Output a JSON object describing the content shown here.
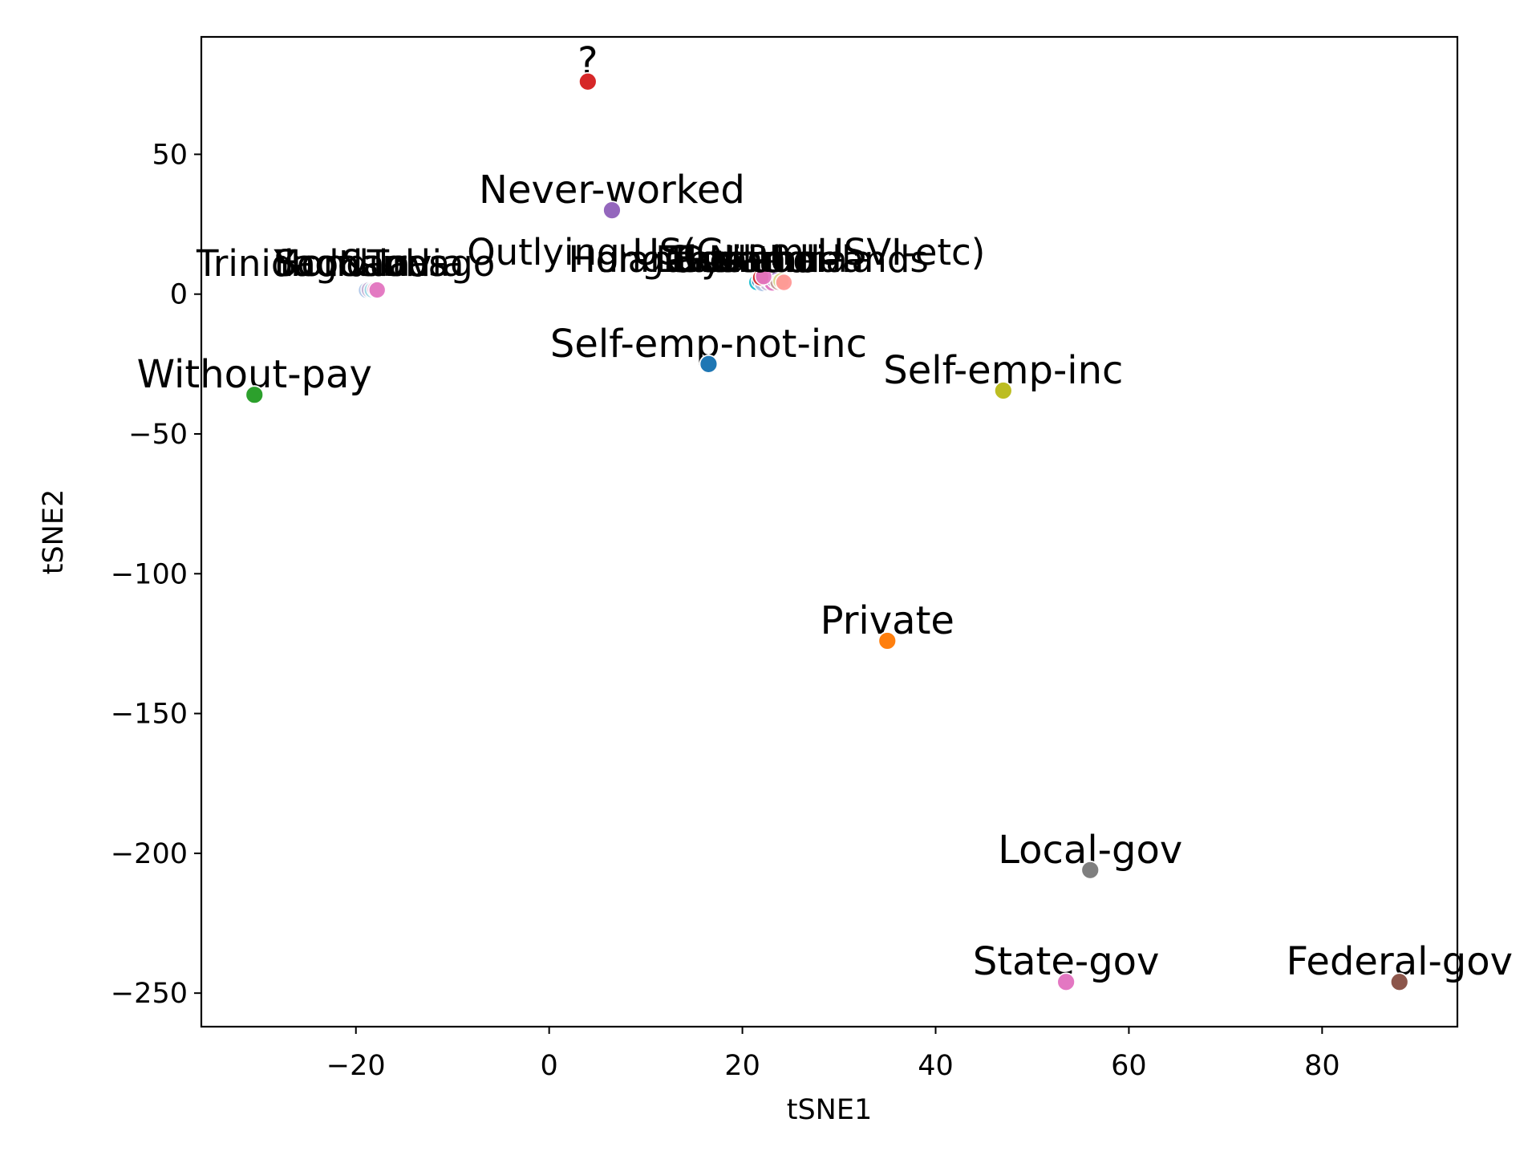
{
  "chart_data": {
    "type": "scatter",
    "xlabel": "tSNE1",
    "ylabel": "tSNE2",
    "xlim": [
      -36,
      94
    ],
    "ylim": [
      -262,
      92
    ],
    "xticks": [
      -20,
      0,
      20,
      40,
      60,
      80
    ],
    "yticks": [
      50,
      0,
      -50,
      -100,
      -150,
      -200,
      -250
    ],
    "x_tick_labels": [
      "−20",
      "0",
      "20",
      "40",
      "60",
      "80"
    ],
    "y_tick_labels": [
      "50",
      "0",
      "−50",
      "−100",
      "−150",
      "−200",
      "−250"
    ],
    "grid": false,
    "legend": "none",
    "points": [
      {
        "label": "?",
        "x": 4.0,
        "y": 76.0,
        "color": "#d62728"
      },
      {
        "label": "Never-worked",
        "x": 6.5,
        "y": 30.0,
        "color": "#9467bd"
      },
      {
        "label": "Self-emp-not-inc",
        "x": 16.5,
        "y": -25.0,
        "color": "#1f77b4"
      },
      {
        "label": "Self-emp-inc",
        "x": 47.0,
        "y": -34.5,
        "color": "#bcbd22"
      },
      {
        "label": "Without-pay",
        "x": -30.5,
        "y": -36.0,
        "color": "#2ca02c"
      },
      {
        "label": "Private",
        "x": 35.0,
        "y": -124.0,
        "color": "#ff7f0e"
      },
      {
        "label": "Local-gov",
        "x": 56.0,
        "y": -206.0,
        "color": "#7f7f7f"
      },
      {
        "label": "State-gov",
        "x": 53.5,
        "y": -246.0,
        "color": "#e377c2"
      },
      {
        "label": "Federal-gov",
        "x": 88.0,
        "y": -246.0,
        "color": "#8c564b"
      }
    ],
    "dense_labels": [
      {
        "label": "Trinidad&Tobago",
        "x": -36.5,
        "y": 6.5
      },
      {
        "label": "Yugoslavia",
        "x": -28.5,
        "y": 6.5
      },
      {
        "label": "Scotland",
        "x": -28.5,
        "y": 6.5
      },
      {
        "label": "Honduras",
        "x": -28.5,
        "y": 6.5
      },
      {
        "label": "Outlying-US(Guam-USVI-etc)",
        "x": -8.5,
        "y": 10.5
      },
      {
        "label": "Hungary",
        "x": 2.0,
        "y": 8.0
      },
      {
        "label": "Holand-Netherlands",
        "x": 2.0,
        "y": 8.0
      },
      {
        "label": "Laos",
        "x": 11.0,
        "y": 8.0
      },
      {
        "label": "Thailand",
        "x": 12.0,
        "y": 8.0
      },
      {
        "label": "Cambodia",
        "x": 12.0,
        "y": 8.0
      },
      {
        "label": "Ecuador",
        "x": 13.0,
        "y": 8.0
      },
      {
        "label": "Ireland",
        "x": 14.0,
        "y": 8.0
      },
      {
        "label": "Guatemala",
        "x": 13.0,
        "y": 8.0
      }
    ],
    "cluster_points": [
      {
        "x": -18.9,
        "y": 1.4,
        "color": "#aec7e8"
      },
      {
        "x": -18.6,
        "y": 1.6,
        "color": "#c5b0d5"
      },
      {
        "x": -18.3,
        "y": 1.5,
        "color": "#9edae5"
      },
      {
        "x": -18.0,
        "y": 1.7,
        "color": "#f7b6d2"
      },
      {
        "x": -17.8,
        "y": 1.5,
        "color": "#e377c2"
      },
      {
        "x": 21.5,
        "y": 4.2,
        "color": "#17becf"
      },
      {
        "x": 21.8,
        "y": 4.8,
        "color": "#1f77b4"
      },
      {
        "x": 22.1,
        "y": 3.8,
        "color": "#aec7e8"
      },
      {
        "x": 22.4,
        "y": 5.0,
        "color": "#9edae5"
      },
      {
        "x": 22.6,
        "y": 4.1,
        "color": "#c5b0d5"
      },
      {
        "x": 22.9,
        "y": 4.6,
        "color": "#f7b6d2"
      },
      {
        "x": 23.1,
        "y": 4.0,
        "color": "#e377c2"
      },
      {
        "x": 23.4,
        "y": 4.9,
        "color": "#9467bd"
      },
      {
        "x": 23.7,
        "y": 4.3,
        "color": "#c49c94"
      },
      {
        "x": 24.0,
        "y": 4.7,
        "color": "#dbdb8d"
      },
      {
        "x": 24.3,
        "y": 4.2,
        "color": "#ff9896"
      },
      {
        "x": 21.9,
        "y": 5.9,
        "color": "#d62728"
      },
      {
        "x": 22.2,
        "y": 6.3,
        "color": "#e377c2"
      }
    ]
  }
}
